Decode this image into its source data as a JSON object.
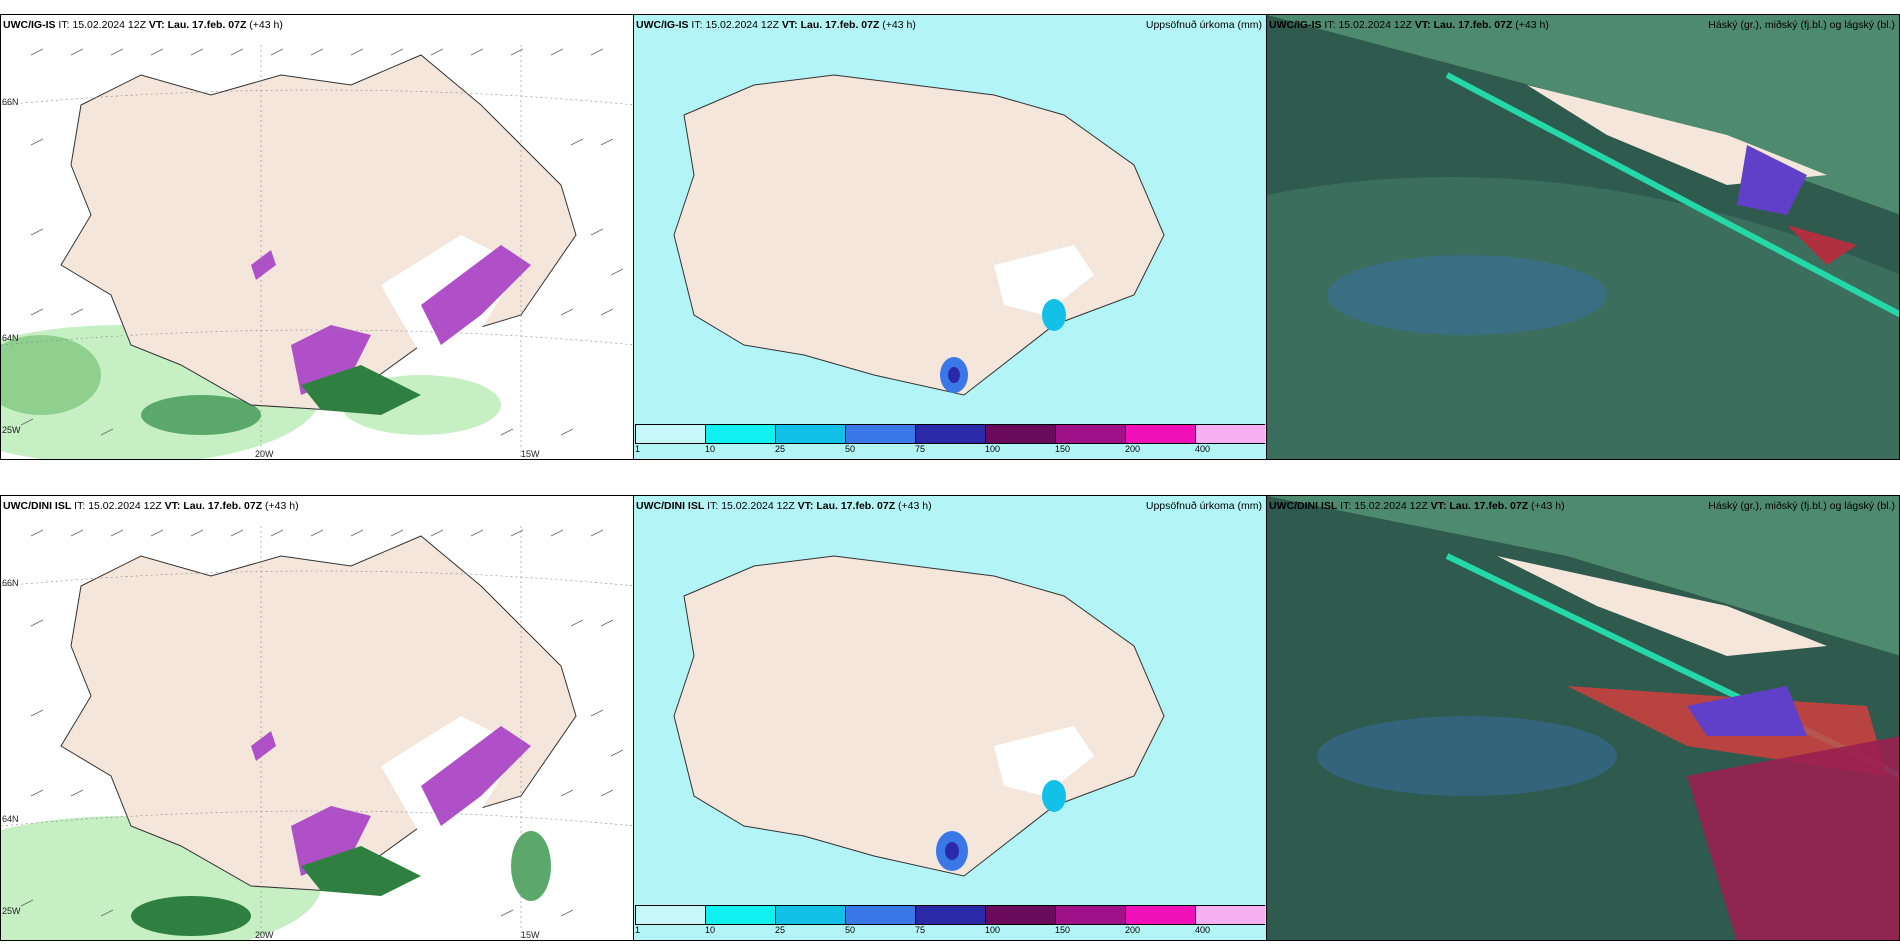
{
  "rows": [
    {
      "model": "UWC/IG-IS",
      "panels": [
        {
          "it_label": "IT:",
          "it_value": "15.02.2024 12Z",
          "vt_label": "VT:",
          "vt_value": "Lau. 17.feb. 07Z",
          "lead": "(+43 h)",
          "right_title": ""
        },
        {
          "it_label": "IT:",
          "it_value": "15.02.2024 12Z",
          "vt_label": "VT:",
          "vt_value": "Lau. 17.feb. 07Z",
          "lead": "(+43 h)",
          "right_title": "Uppsöfnuð úrkoma (mm)"
        },
        {
          "it_label": "IT:",
          "it_value": "15.02.2024 12Z",
          "vt_label": "VT:",
          "vt_value": "Lau. 17.feb. 07Z",
          "lead": "(+43 h)",
          "right_title": "Háský (gr.), miðský (fj.bl.) og lágský (bl.)"
        }
      ],
      "map_labels": {
        "lat_top": "66N",
        "lat_mid": "64N",
        "lon_left": "25W",
        "lon_mid": "20W",
        "lon_right": "15W"
      }
    },
    {
      "model": "UWC/DINI ISL",
      "panels": [
        {
          "it_label": "IT:",
          "it_value": "15.02.2024 12Z",
          "vt_label": "VT:",
          "vt_value": "Lau. 17.feb. 07Z",
          "lead": "(+43 h)",
          "right_title": ""
        },
        {
          "it_label": "IT:",
          "it_value": "15.02.2024 12Z",
          "vt_label": "VT:",
          "vt_value": "Lau. 17.feb. 07Z",
          "lead": "(+43 h)",
          "right_title": "Uppsöfnuð úrkoma (mm)"
        },
        {
          "it_label": "IT:",
          "it_value": "15.02.2024 12Z",
          "vt_label": "VT:",
          "vt_value": "Lau. 17.feb. 07Z",
          "lead": "(+43 h)",
          "right_title": "Háský (gr.), miðský (fj.bl.) og lágský (bl.)"
        }
      ],
      "map_labels": {
        "lat_top": "66N",
        "lat_mid": "64N",
        "lon_left": "25W",
        "lon_mid": "20W",
        "lon_right": "15W"
      }
    }
  ],
  "precip_legend": {
    "ticks": [
      "1",
      "10",
      "25",
      "50",
      "75",
      "100",
      "150",
      "200",
      "400"
    ],
    "colors": [
      "#c8f7f9",
      "#10f0f0",
      "#12c0e8",
      "#3a78e8",
      "#2a2aa8",
      "#6a0a5a",
      "#a01088",
      "#f010b8",
      "#f4b0f0"
    ]
  },
  "colors": {
    "land": "#f4e6da",
    "sea_precip": "#b3f5f7",
    "cloud_dark": "#2f5a4e",
    "cloud_mid": "#4e8a6e",
    "cloud_light": "#7ab99a",
    "snow_green": "#5aa86a",
    "snow_purple": "#b050c8"
  }
}
